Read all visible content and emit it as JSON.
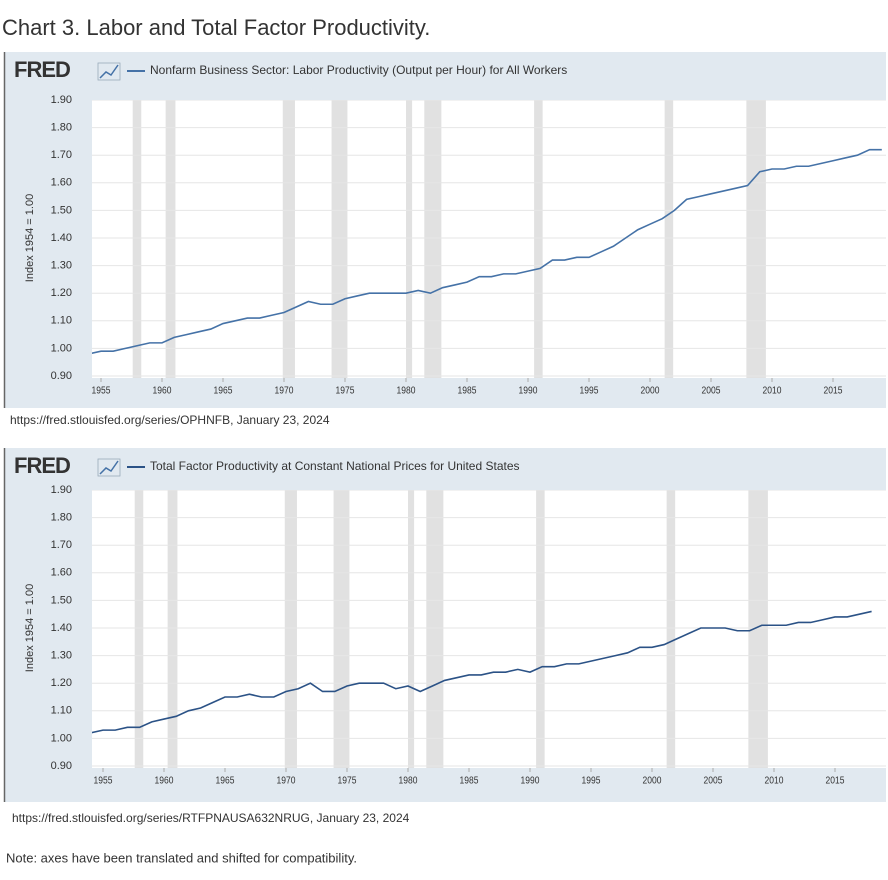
{
  "title": "Chart 3. Labor and Total Factor Productivity.",
  "note": "Note: axes have been translated and shifted for compatibility.",
  "chart_data": [
    {
      "type": "line",
      "logo": "FRED",
      "ylabel": "Index 1954 = 1.00",
      "source": "https://fred.stlouisfed.org/series/OPHNFB, January 23, 2024",
      "x": [
        1954,
        1955,
        1956,
        1957,
        1958,
        1959,
        1960,
        1961,
        1962,
        1963,
        1964,
        1965,
        1966,
        1967,
        1968,
        1969,
        1970,
        1971,
        1972,
        1973,
        1974,
        1975,
        1976,
        1977,
        1978,
        1979,
        1980,
        1981,
        1982,
        1983,
        1984,
        1985,
        1986,
        1987,
        1988,
        1989,
        1990,
        1991,
        1992,
        1993,
        1994,
        1995,
        1996,
        1997,
        1998,
        1999,
        2000,
        2001,
        2002,
        2003,
        2004,
        2005,
        2006,
        2007,
        2008,
        2009,
        2010,
        2011,
        2012,
        2013,
        2014,
        2015,
        2016,
        2017,
        2018,
        2019
      ],
      "series": [
        {
          "name": "Nonfarm Business Sector: Labor Productivity (Output per Hour) for All Workers",
          "color": "#4572a7",
          "values": [
            0.98,
            0.99,
            0.99,
            1.0,
            1.01,
            1.02,
            1.02,
            1.04,
            1.05,
            1.06,
            1.07,
            1.09,
            1.1,
            1.11,
            1.11,
            1.12,
            1.13,
            1.15,
            1.17,
            1.16,
            1.16,
            1.18,
            1.19,
            1.2,
            1.2,
            1.2,
            1.2,
            1.21,
            1.2,
            1.22,
            1.23,
            1.24,
            1.26,
            1.26,
            1.27,
            1.27,
            1.28,
            1.29,
            1.32,
            1.32,
            1.33,
            1.33,
            1.35,
            1.37,
            1.4,
            1.43,
            1.45,
            1.47,
            1.5,
            1.54,
            1.55,
            1.56,
            1.57,
            1.58,
            1.59,
            1.64,
            1.65,
            1.65,
            1.66,
            1.66,
            1.67,
            1.68,
            1.69,
            1.7,
            1.72,
            1.72
          ]
        }
      ],
      "recessions": [
        [
          1957.6,
          1958.3
        ],
        [
          1960.3,
          1961.1
        ],
        [
          1969.9,
          1970.9
        ],
        [
          1973.9,
          1975.2
        ],
        [
          1980.0,
          1980.5
        ],
        [
          1981.5,
          1982.9
        ],
        [
          1990.5,
          1991.2
        ],
        [
          2001.2,
          2001.9
        ],
        [
          2007.9,
          2009.5
        ]
      ],
      "xlim": [
        1954,
        2019
      ],
      "ylim": [
        0.9,
        1.9
      ],
      "xticks": [
        1955,
        1960,
        1965,
        1970,
        1975,
        1980,
        1985,
        1990,
        1995,
        2000,
        2005,
        2010,
        2015
      ],
      "yticks": [
        {
          "value": 0.9,
          "label": "0.90"
        },
        {
          "value": 1.0,
          "label": "1.00"
        },
        {
          "value": 1.1,
          "label": "1.10"
        },
        {
          "value": 1.2,
          "label": "1.20"
        },
        {
          "value": 1.3,
          "label": "1.30"
        },
        {
          "value": 1.4,
          "label": "1.40"
        },
        {
          "value": 1.5,
          "label": "1.50"
        },
        {
          "value": 1.6,
          "label": "1.60"
        },
        {
          "value": 1.7,
          "label": "1.70"
        },
        {
          "value": 1.8,
          "label": "1.80"
        },
        {
          "value": 1.9,
          "label": "1.90"
        }
      ],
      "grid": true
    },
    {
      "type": "line",
      "logo": "FRED",
      "ylabel": "Index 1954 = 1.00",
      "source": "https://fred.stlouisfed.org/series/RTFPNAUSA632NRUG, January 23, 2024",
      "x": [
        1954,
        1955,
        1956,
        1957,
        1958,
        1959,
        1960,
        1961,
        1962,
        1963,
        1964,
        1965,
        1966,
        1967,
        1968,
        1969,
        1970,
        1971,
        1972,
        1973,
        1974,
        1975,
        1976,
        1977,
        1978,
        1979,
        1980,
        1981,
        1982,
        1983,
        1984,
        1985,
        1986,
        1987,
        1988,
        1989,
        1990,
        1991,
        1992,
        1993,
        1994,
        1995,
        1996,
        1997,
        1998,
        1999,
        2000,
        2001,
        2002,
        2003,
        2004,
        2005,
        2006,
        2007,
        2008,
        2009,
        2010,
        2011,
        2012,
        2013,
        2014,
        2015,
        2016,
        2017,
        2018
      ],
      "series": [
        {
          "name": "Total Factor Productivity at Constant National Prices for United States",
          "color": "#2b5286",
          "values": [
            1.02,
            1.03,
            1.03,
            1.04,
            1.04,
            1.06,
            1.07,
            1.08,
            1.1,
            1.11,
            1.13,
            1.15,
            1.15,
            1.16,
            1.15,
            1.15,
            1.17,
            1.18,
            1.2,
            1.17,
            1.17,
            1.19,
            1.2,
            1.2,
            1.2,
            1.18,
            1.19,
            1.17,
            1.19,
            1.21,
            1.22,
            1.23,
            1.23,
            1.24,
            1.24,
            1.25,
            1.24,
            1.26,
            1.26,
            1.27,
            1.27,
            1.28,
            1.29,
            1.3,
            1.31,
            1.33,
            1.33,
            1.34,
            1.36,
            1.38,
            1.4,
            1.4,
            1.4,
            1.39,
            1.39,
            1.41,
            1.41,
            1.41,
            1.42,
            1.42,
            1.43,
            1.44,
            1.44,
            1.45,
            1.46
          ]
        }
      ],
      "recessions": [
        [
          1957.6,
          1958.3
        ],
        [
          1960.3,
          1961.1
        ],
        [
          1969.9,
          1970.9
        ],
        [
          1973.9,
          1975.2
        ],
        [
          1980.0,
          1980.5
        ],
        [
          1981.5,
          1982.9
        ],
        [
          1990.5,
          1991.2
        ],
        [
          2001.2,
          2001.9
        ],
        [
          2007.9,
          2009.5
        ]
      ],
      "xlim": [
        1954,
        2019
      ],
      "ylim": [
        0.9,
        1.9
      ],
      "xticks": [
        1955,
        1960,
        1965,
        1970,
        1975,
        1980,
        1985,
        1990,
        1995,
        2000,
        2005,
        2010,
        2015
      ],
      "yticks": [
        {
          "value": 0.9,
          "label": "0.90"
        },
        {
          "value": 1.0,
          "label": "1.00"
        },
        {
          "value": 1.1,
          "label": "1.10"
        },
        {
          "value": 1.2,
          "label": "1.20"
        },
        {
          "value": 1.3,
          "label": "1.30"
        },
        {
          "value": 1.4,
          "label": "1.40"
        },
        {
          "value": 1.5,
          "label": "1.50"
        },
        {
          "value": 1.6,
          "label": "1.60"
        },
        {
          "value": 1.7,
          "label": "1.70"
        },
        {
          "value": 1.8,
          "label": "1.80"
        },
        {
          "value": 1.9,
          "label": "1.90"
        }
      ],
      "grid": true
    }
  ]
}
